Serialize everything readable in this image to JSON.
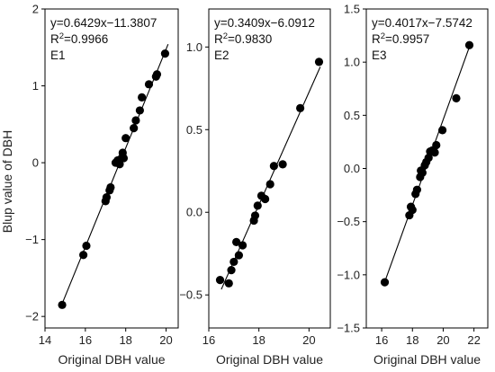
{
  "chart_data": [
    {
      "type": "scatter",
      "panel_label": "E1",
      "equation": "y=0.6429x−11.3807",
      "r2_label": "R",
      "r2_sup": "2",
      "r2_value": "=0.9966",
      "xlabel": "Original DBH value",
      "ylabel": "Blup value of DBH",
      "xlim": [
        14,
        20.6
      ],
      "ylim": [
        -2.15,
        2.0
      ],
      "xticks": [
        14,
        16,
        18,
        20
      ],
      "xtick_labels": [
        "14",
        "16",
        "18",
        "20"
      ],
      "yticks": [
        -2,
        -1,
        0,
        1,
        2
      ],
      "ytick_labels": [
        "−2",
        "−1",
        "0",
        "1",
        "2"
      ],
      "fit": {
        "slope": 0.6429,
        "intercept": -11.3807,
        "x_range": [
          14.8,
          20.1
        ]
      },
      "points": [
        {
          "x": 14.85,
          "y": -1.85
        },
        {
          "x": 15.9,
          "y": -1.2
        },
        {
          "x": 16.05,
          "y": -1.08
        },
        {
          "x": 17.0,
          "y": -0.5
        },
        {
          "x": 17.05,
          "y": -0.45
        },
        {
          "x": 17.2,
          "y": -0.36
        },
        {
          "x": 17.25,
          "y": -0.32
        },
        {
          "x": 17.5,
          "y": 0.0
        },
        {
          "x": 17.6,
          "y": 0.03
        },
        {
          "x": 17.7,
          "y": -0.02
        },
        {
          "x": 17.8,
          "y": 0.06
        },
        {
          "x": 17.85,
          "y": 0.13
        },
        {
          "x": 17.9,
          "y": 0.06
        },
        {
          "x": 18.0,
          "y": 0.32
        },
        {
          "x": 18.4,
          "y": 0.45
        },
        {
          "x": 18.5,
          "y": 0.55
        },
        {
          "x": 18.7,
          "y": 0.68
        },
        {
          "x": 18.8,
          "y": 0.85
        },
        {
          "x": 19.15,
          "y": 1.02
        },
        {
          "x": 19.5,
          "y": 1.12
        },
        {
          "x": 19.55,
          "y": 1.15
        },
        {
          "x": 19.95,
          "y": 1.42
        }
      ]
    },
    {
      "type": "scatter",
      "panel_label": "E2",
      "equation": "y=0.3409x−6.0912",
      "r2_label": "R",
      "r2_sup": "2",
      "r2_value": "=0.9830",
      "xlabel": "Original DBH value",
      "ylabel": "",
      "xlim": [
        16,
        20.85
      ],
      "ylim": [
        -0.7,
        1.23
      ],
      "xticks": [
        16,
        18,
        20
      ],
      "xtick_labels": [
        "16",
        "18",
        "20"
      ],
      "yticks": [
        -0.5,
        0.0,
        0.5,
        1.0
      ],
      "ytick_labels": [
        "−0.5",
        "0.0",
        "0.5",
        "1.0"
      ],
      "fit": {
        "slope": 0.3409,
        "intercept": -6.0912,
        "x_range": [
          16.5,
          20.45
        ]
      },
      "points": [
        {
          "x": 16.45,
          "y": -0.41
        },
        {
          "x": 16.8,
          "y": -0.43
        },
        {
          "x": 16.9,
          "y": -0.35
        },
        {
          "x": 17.0,
          "y": -0.3
        },
        {
          "x": 17.1,
          "y": -0.18
        },
        {
          "x": 17.2,
          "y": -0.26
        },
        {
          "x": 17.35,
          "y": -0.2
        },
        {
          "x": 17.8,
          "y": -0.05
        },
        {
          "x": 17.85,
          "y": -0.02
        },
        {
          "x": 17.95,
          "y": 0.04
        },
        {
          "x": 18.1,
          "y": 0.1
        },
        {
          "x": 18.25,
          "y": 0.08
        },
        {
          "x": 18.45,
          "y": 0.17
        },
        {
          "x": 18.6,
          "y": 0.28
        },
        {
          "x": 18.95,
          "y": 0.29
        },
        {
          "x": 19.65,
          "y": 0.63
        },
        {
          "x": 20.4,
          "y": 0.91
        }
      ]
    },
    {
      "type": "scatter",
      "panel_label": "E3",
      "equation": "y=0.4017x−7.5742",
      "r2_label": "R",
      "r2_sup": "2",
      "r2_value": "=0.9957",
      "xlabel": "Original DBH value",
      "ylabel": "",
      "xlim": [
        15,
        22.9
      ],
      "ylim": [
        -1.5,
        1.5
      ],
      "xticks": [
        16,
        18,
        20,
        22
      ],
      "xtick_labels": [
        "16",
        "18",
        "20",
        "22"
      ],
      "yticks": [
        -1.5,
        -1.0,
        -0.5,
        0.0,
        0.5,
        1.0,
        1.5
      ],
      "ytick_labels": [
        "−1.5",
        "−1.0",
        "−0.5",
        "0.0",
        "0.5",
        "1.0",
        "1.5"
      ],
      "fit": {
        "slope": 0.4017,
        "intercept": -7.5742,
        "x_range": [
          16.2,
          21.7
        ]
      },
      "points": [
        {
          "x": 16.2,
          "y": -1.07
        },
        {
          "x": 17.8,
          "y": -0.44
        },
        {
          "x": 17.9,
          "y": -0.36
        },
        {
          "x": 18.0,
          "y": -0.39
        },
        {
          "x": 18.2,
          "y": -0.24
        },
        {
          "x": 18.3,
          "y": -0.2
        },
        {
          "x": 18.5,
          "y": -0.08
        },
        {
          "x": 18.55,
          "y": -0.02
        },
        {
          "x": 18.65,
          "y": -0.04
        },
        {
          "x": 18.8,
          "y": 0.03
        },
        {
          "x": 18.9,
          "y": 0.06
        },
        {
          "x": 19.05,
          "y": 0.1
        },
        {
          "x": 19.15,
          "y": 0.16
        },
        {
          "x": 19.3,
          "y": 0.17
        },
        {
          "x": 19.45,
          "y": 0.15
        },
        {
          "x": 19.55,
          "y": 0.22
        },
        {
          "x": 19.95,
          "y": 0.36
        },
        {
          "x": 20.85,
          "y": 0.66
        },
        {
          "x": 21.7,
          "y": 1.16
        }
      ]
    }
  ]
}
